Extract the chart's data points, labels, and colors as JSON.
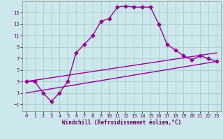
{
  "background_color": "#cce8ec",
  "grid_color": "#aacccc",
  "line_color": "#990099",
  "xlabel": "Windchill (Refroidissement éolien,°C)",
  "xlim": [
    -0.5,
    23.5
  ],
  "ylim": [
    -2.2,
    17
  ],
  "xticks": [
    0,
    1,
    2,
    3,
    4,
    5,
    6,
    7,
    8,
    9,
    10,
    11,
    12,
    13,
    14,
    15,
    16,
    17,
    18,
    19,
    20,
    21,
    22,
    23
  ],
  "yticks": [
    -1,
    1,
    3,
    5,
    7,
    9,
    11,
    13,
    15
  ],
  "line1_x": [
    0,
    1,
    2,
    3,
    4,
    5,
    6,
    7,
    8,
    9,
    10,
    11,
    12,
    13,
    14,
    15,
    16,
    17,
    18,
    19,
    20,
    21,
    22,
    23
  ],
  "line1_y": [
    3,
    3,
    1,
    -0.5,
    1,
    3,
    8,
    9.5,
    11,
    13.5,
    14,
    16,
    16.2,
    16,
    16,
    16,
    13,
    9.5,
    8.5,
    7.5,
    6.8,
    7.5,
    7,
    6.5
  ],
  "line2_x": [
    0,
    23
  ],
  "line2_y": [
    3,
    8
  ],
  "line3_x": [
    0,
    23
  ],
  "line3_y": [
    1,
    6.5
  ],
  "marker": "D",
  "markersize": 2.5,
  "linewidth": 1.0,
  "tick_fontsize": 5.0,
  "xlabel_fontsize": 5.5
}
